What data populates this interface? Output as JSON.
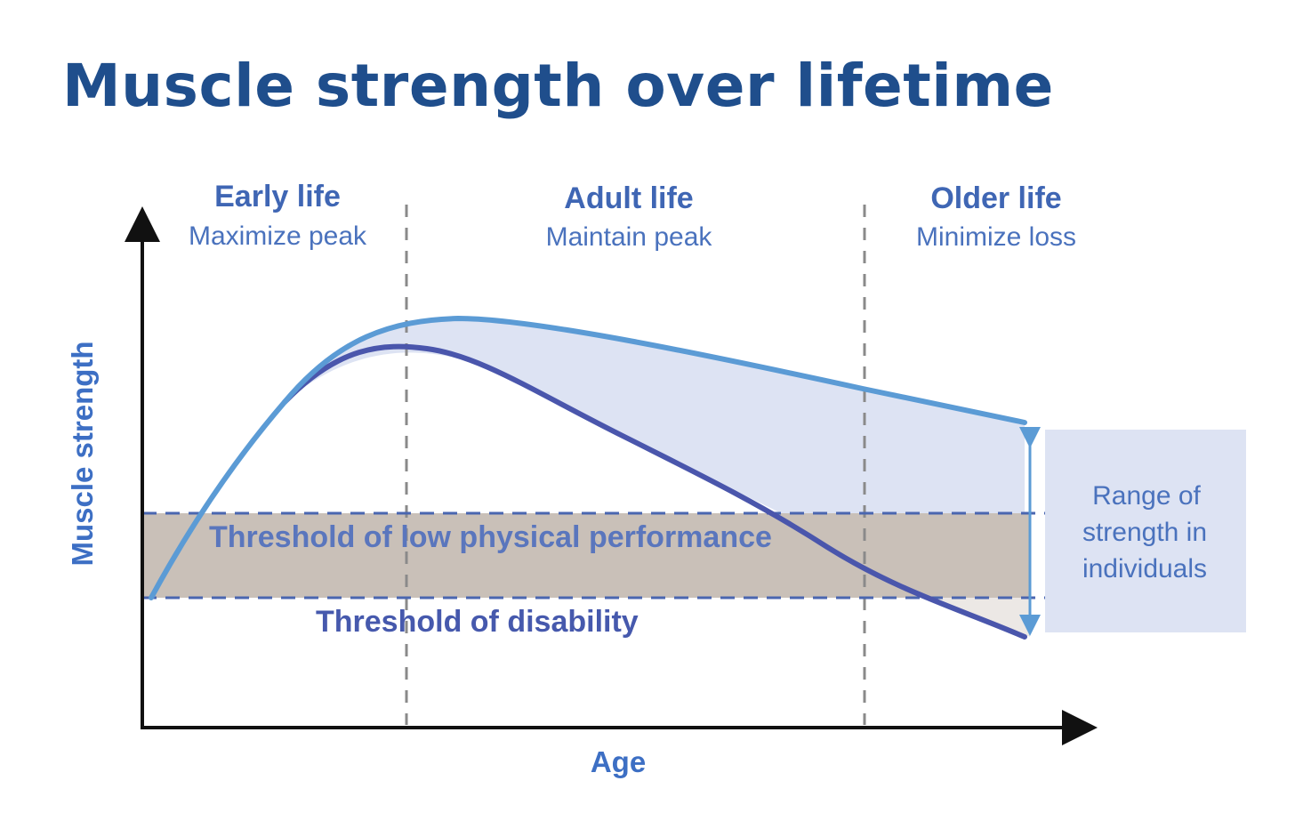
{
  "title": "Muscle strength over lifetime",
  "phases": [
    {
      "name": "Early life",
      "goal": "Maximize peak"
    },
    {
      "name": "Adult life",
      "goal": "Maintain peak"
    },
    {
      "name": "Older life",
      "goal": "Minimize loss"
    }
  ],
  "axes": {
    "x": "Age",
    "y": "Muscle strength"
  },
  "thresholds": {
    "low_performance": "Threshold of low physical performance",
    "disability": "Threshold of disability"
  },
  "range_box": {
    "lines": [
      "Range of",
      "strength in",
      "individuals"
    ]
  },
  "colors": {
    "title": "#1f4e8c",
    "upper_curve": "#5b9bd5",
    "lower_curve": "#4a56ac",
    "fill_between": "#dde3f3",
    "threshold_band": "#c9c0b8",
    "range_box": "#dde3f3",
    "axis": "#111111"
  }
}
